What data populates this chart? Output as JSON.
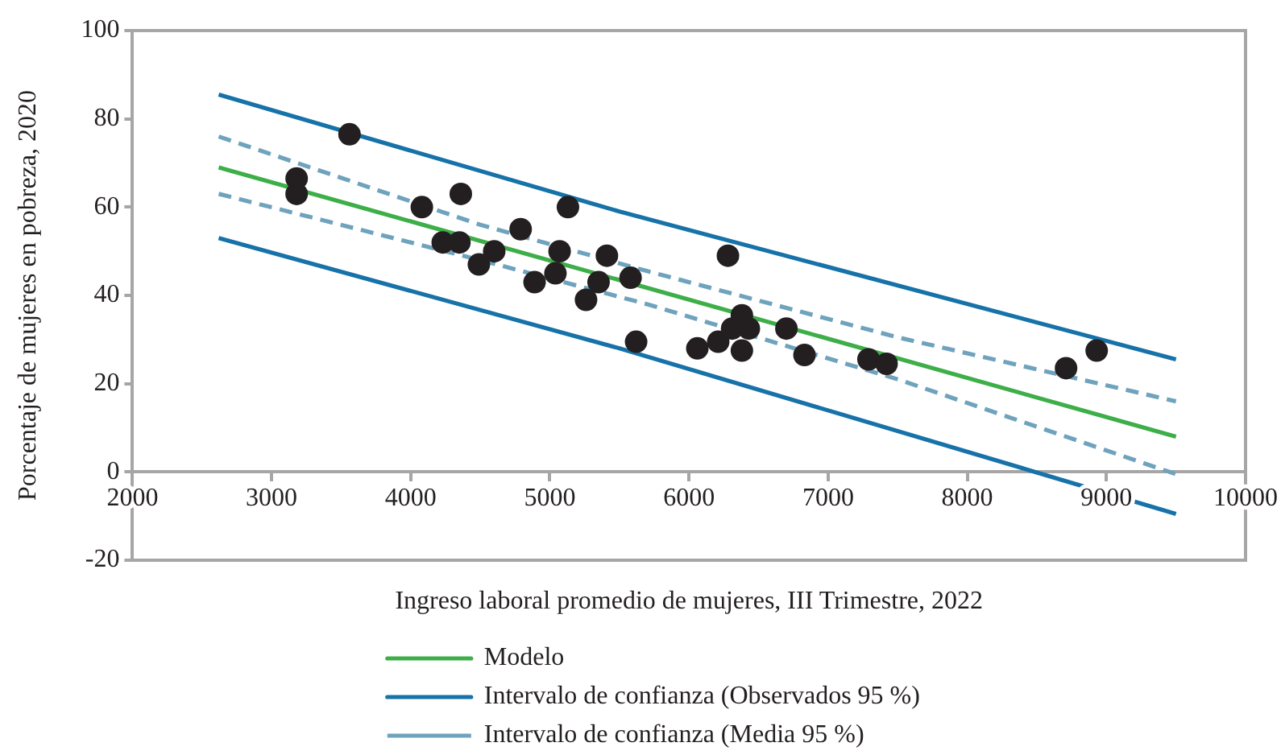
{
  "chart_data": {
    "type": "scatter",
    "xlabel": "Ingreso laboral promedio de mujeres, III Trimestre, 2022",
    "ylabel": "Porcentaje de mujeres en pobreza, 2020",
    "xlim": [
      2000,
      10000
    ],
    "ylim": [
      -20,
      100
    ],
    "xticks": [
      2000,
      3000,
      4000,
      5000,
      6000,
      7000,
      8000,
      9000,
      10000
    ],
    "yticks": [
      -20,
      0,
      20,
      40,
      60,
      80,
      100
    ],
    "grid": false,
    "legend": "bottom",
    "series": [
      {
        "type": "scatter",
        "color": "#231f20",
        "marker": "circle",
        "x": [
          3180,
          3180,
          3560,
          4080,
          4230,
          4350,
          4360,
          4490,
          4600,
          4790,
          4890,
          5040,
          5070,
          5130,
          5260,
          5350,
          5410,
          5580,
          5620,
          6060,
          6210,
          6280,
          6310,
          6380,
          6430,
          6380,
          6700,
          6830,
          7290,
          7420,
          8710,
          8930
        ],
        "values": [
          66.5,
          63,
          76.5,
          60,
          52,
          52,
          63,
          47,
          50,
          55,
          43,
          45,
          50,
          60,
          39,
          43,
          49,
          44,
          29.5,
          28,
          29.5,
          49,
          32.5,
          35.5,
          32.5,
          27.5,
          32.5,
          26.5,
          25.5,
          24.5,
          23.5,
          27.5
        ]
      },
      {
        "type": "line",
        "name": "Modelo",
        "color": "#3dae48",
        "marker": "none",
        "line_style": "solid",
        "x": [
          2620,
          9500
        ],
        "values": [
          69,
          8
        ]
      },
      {
        "type": "line",
        "name": "Intervalo de confianza (Observados 95 %)",
        "color": "#1672a8",
        "marker": "none",
        "line_style": "solid",
        "x": [
          2620,
          5500,
          9500
        ],
        "values": [
          85.5,
          59,
          25.5
        ]
      },
      {
        "type": "line",
        "color": "#1672a8",
        "marker": "none",
        "line_style": "solid",
        "x": [
          2620,
          5500,
          9500
        ],
        "values": [
          53,
          28,
          -9.5
        ]
      },
      {
        "type": "line",
        "name": "Intervalo de confianza (Media 95 %)",
        "color": "#6fa3bd",
        "marker": "none",
        "line_style": "dashed",
        "x": [
          2620,
          4500,
          5700,
          7500,
          9500
        ],
        "values": [
          76,
          56,
          45.5,
          30.5,
          16
        ]
      },
      {
        "type": "line",
        "color": "#6fa3bd",
        "marker": "none",
        "line_style": "dashed",
        "x": [
          2620,
          4500,
          5700,
          7500,
          9500
        ],
        "values": [
          63,
          48,
          38,
          21,
          -0.5
        ]
      }
    ]
  }
}
